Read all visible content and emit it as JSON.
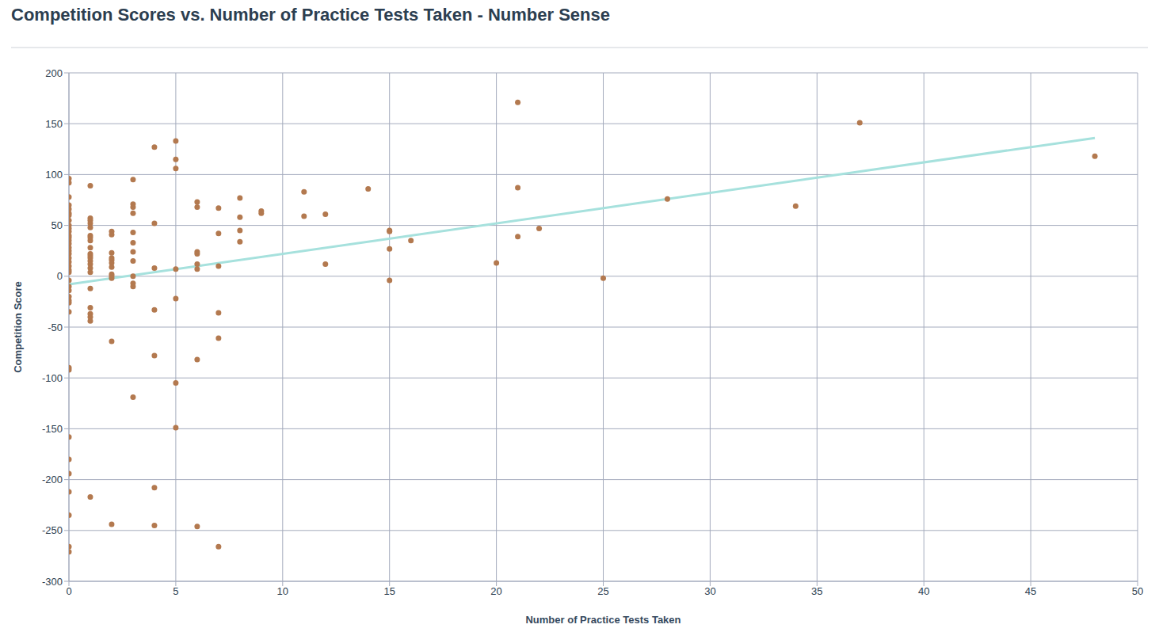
{
  "chart_data": {
    "type": "scatter",
    "title": "Competition Scores vs. Number of Practice Tests Taken - Number Sense",
    "x_label": "Number of Practice Tests Taken",
    "y_label": "Competition Score",
    "color": "#b3794f",
    "x": [
      0,
      0,
      0,
      0,
      0,
      0,
      0,
      0,
      0,
      0,
      0,
      0,
      0,
      0,
      0,
      0,
      0,
      0,
      0,
      0,
      0,
      0,
      0,
      0,
      0,
      0,
      0,
      0,
      0,
      0,
      0,
      0,
      0,
      0,
      0,
      0,
      0,
      0,
      0,
      1,
      1,
      1,
      1,
      1,
      1,
      1,
      1,
      1,
      1,
      1,
      1,
      1,
      1,
      1,
      1,
      1,
      1,
      1,
      1,
      1,
      1,
      2,
      2,
      2,
      2,
      2,
      2,
      2,
      2,
      2,
      2,
      2,
      2,
      3,
      3,
      3,
      3,
      3,
      3,
      3,
      3,
      3,
      3,
      3,
      3,
      4,
      4,
      4,
      4,
      4,
      4,
      4,
      5,
      5,
      5,
      5,
      5,
      5,
      5,
      6,
      6,
      6,
      6,
      6,
      6,
      6,
      6,
      7,
      7,
      7,
      7,
      7,
      7,
      8,
      8,
      8,
      8,
      9,
      9,
      11,
      11,
      12,
      12,
      14,
      15,
      15,
      15,
      15,
      16,
      20,
      21,
      21,
      21,
      22,
      25,
      28,
      34,
      37,
      48
    ],
    "values": [
      96,
      92,
      78,
      70,
      66,
      62,
      60,
      55,
      50,
      47,
      44,
      40,
      38,
      35,
      32,
      28,
      25,
      22,
      18,
      14,
      10,
      6,
      4,
      -4,
      -10,
      -14,
      -20,
      -24,
      -26,
      -35,
      -90,
      -92,
      -158,
      -180,
      -194,
      -212,
      -235,
      -266,
      -271,
      89,
      57,
      55,
      52,
      48,
      40,
      38,
      35,
      28,
      22,
      20,
      18,
      15,
      12,
      8,
      4,
      -12,
      -31,
      -37,
      -40,
      -44,
      -217,
      44,
      41,
      23,
      18,
      16,
      13,
      9,
      2,
      0,
      -2,
      -64,
      -244,
      95,
      71,
      68,
      62,
      43,
      33,
      24,
      15,
      0,
      -7,
      -10,
      -119,
      127,
      52,
      8,
      -33,
      -78,
      -208,
      -245,
      133,
      115,
      106,
      7,
      -22,
      -105,
      -149,
      73,
      68,
      24,
      22,
      12,
      7,
      -82,
      -246,
      67,
      42,
      10,
      -36,
      -61,
      -266,
      77,
      58,
      45,
      34,
      64,
      62,
      83,
      59,
      61,
      12,
      86,
      45,
      44,
      27,
      -4,
      35,
      13,
      171,
      87,
      39,
      47,
      -2,
      76,
      69,
      151,
      118
    ],
    "trendline": {
      "x": [
        0,
        48
      ],
      "values": [
        -8,
        136
      ],
      "color": "#a6e1dd"
    },
    "xlim": [
      0,
      50
    ],
    "xticks": [
      0,
      5,
      10,
      15,
      20,
      25,
      30,
      35,
      40,
      45,
      50
    ],
    "ylim": [
      -300,
      200
    ],
    "yticks": [
      -300,
      -250,
      -200,
      -150,
      -100,
      -50,
      0,
      50,
      100,
      150,
      200
    ],
    "grid": true
  }
}
